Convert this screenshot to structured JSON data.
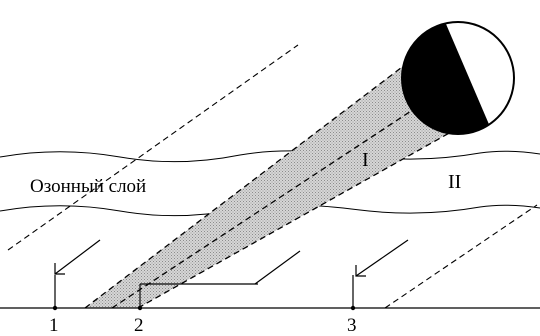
{
  "ozone_layer_label": "Озонный слой",
  "region_labels": {
    "umbra": "I",
    "penumbra": "II"
  },
  "points": [
    "1",
    "2",
    "3"
  ],
  "colors": {
    "line": "#000000",
    "band_fill": "#bdbdbd",
    "disc_shadow": "#000000",
    "background": "#ffffff"
  }
}
